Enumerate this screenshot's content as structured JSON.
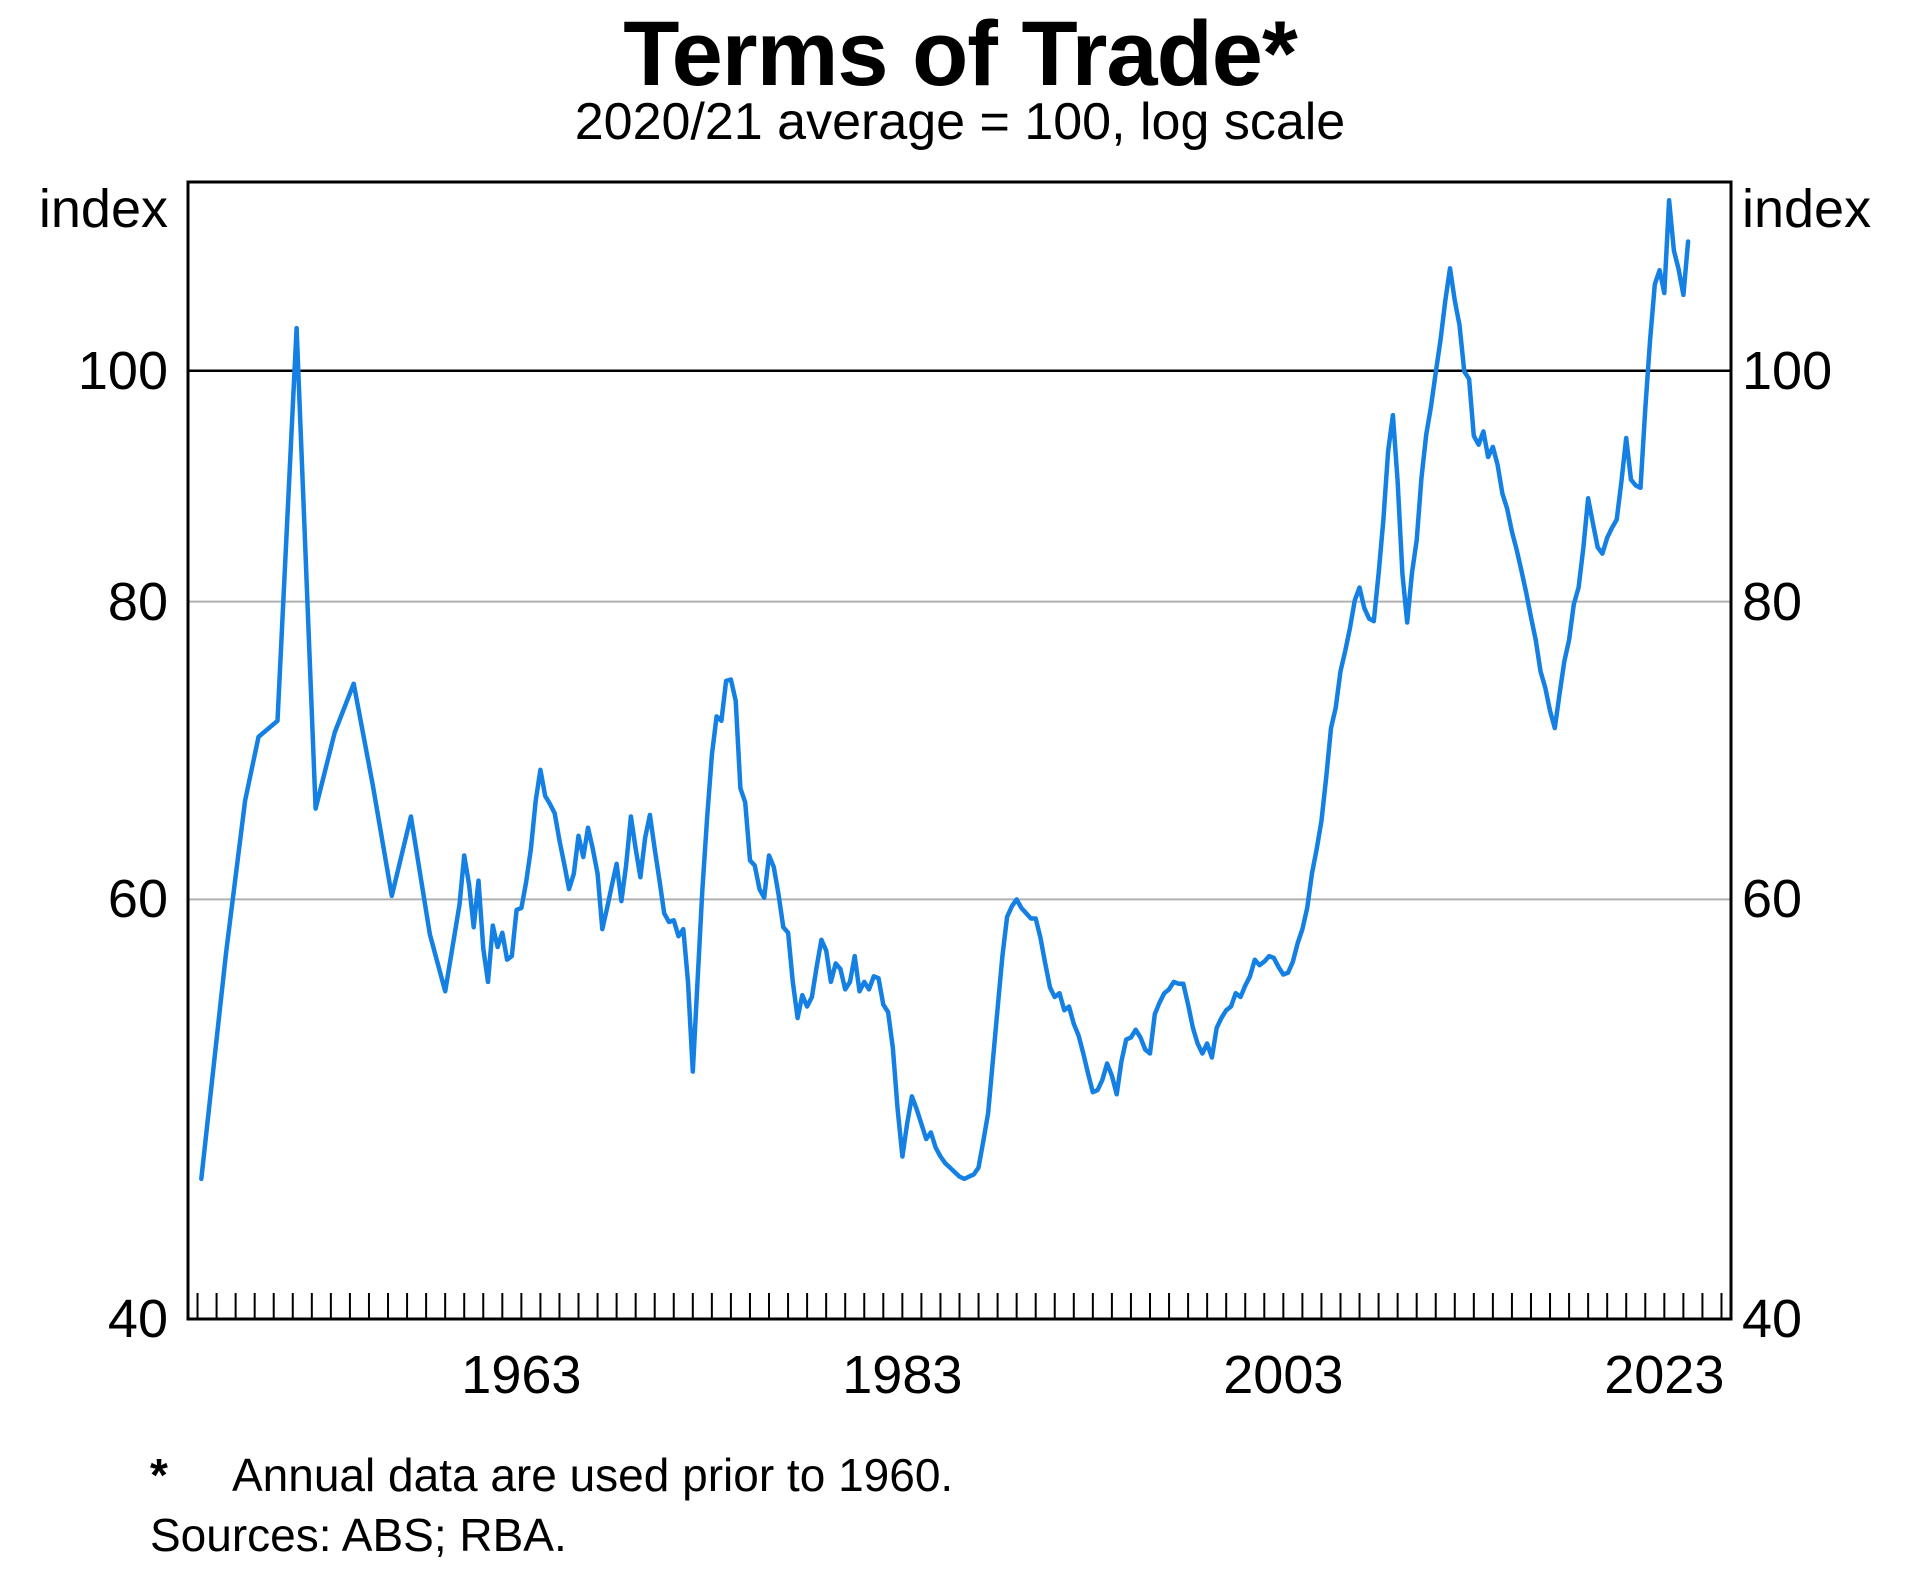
{
  "title": "Terms of Trade*",
  "subtitle": "2020/21 average = 100, log scale",
  "axis_unit": "index",
  "footnote_marker": "*",
  "footnote": "Annual data are used prior to 1960.",
  "sources": "Sources: ABS; RBA.",
  "colors": {
    "line": "#1580E4",
    "grid": "#b0b0b0",
    "axis": "#000000",
    "reference_line": "#000000"
  },
  "chart_data": {
    "type": "line",
    "title": "Terms of Trade*",
    "subtitle": "2020/21 average = 100, log scale",
    "ylabel": "index",
    "y_scale": "log",
    "ylim": [
      40,
      120
    ],
    "yticks": [
      40,
      60,
      80,
      100
    ],
    "reference_line": 100,
    "xlim": [
      1945.5,
      2026.5
    ],
    "xtick_labels": [
      1963,
      1983,
      2003,
      2023
    ],
    "x_minor_tick_step_years": 1,
    "grid": "horizontal",
    "legend_position": "none",
    "series": [
      {
        "name": "Terms of trade",
        "points": [
          [
            1946.2,
            45.8
          ],
          [
            1947.5,
            57.0
          ],
          [
            1948.5,
            66.0
          ],
          [
            1949.2,
            70.2
          ],
          [
            1950.2,
            71.3
          ],
          [
            1951.2,
            104.2
          ],
          [
            1952.2,
            65.5
          ],
          [
            1953.2,
            70.5
          ],
          [
            1954.2,
            73.9
          ],
          [
            1955.2,
            67.0
          ],
          [
            1956.2,
            60.2
          ],
          [
            1957.2,
            65.0
          ],
          [
            1958.2,
            58.0
          ],
          [
            1959.0,
            54.9
          ],
          [
            1959.75,
            59.7
          ],
          [
            1960.0,
            62.6
          ],
          [
            1960.25,
            60.9
          ],
          [
            1960.5,
            58.4
          ],
          [
            1960.75,
            61.1
          ],
          [
            1961.0,
            57.2
          ],
          [
            1961.25,
            55.4
          ],
          [
            1961.5,
            58.5
          ],
          [
            1961.75,
            57.3
          ],
          [
            1962.0,
            58.1
          ],
          [
            1962.25,
            56.6
          ],
          [
            1962.5,
            56.8
          ],
          [
            1962.75,
            59.4
          ],
          [
            1963.0,
            59.5
          ],
          [
            1963.25,
            61.0
          ],
          [
            1963.5,
            63.0
          ],
          [
            1963.75,
            66.0
          ],
          [
            1964.0,
            68.0
          ],
          [
            1964.25,
            66.3
          ],
          [
            1964.5,
            65.8
          ],
          [
            1964.75,
            65.2
          ],
          [
            1965.0,
            63.5
          ],
          [
            1965.25,
            62.1
          ],
          [
            1965.5,
            60.6
          ],
          [
            1965.75,
            61.5
          ],
          [
            1966.0,
            63.8
          ],
          [
            1966.25,
            62.5
          ],
          [
            1966.5,
            64.3
          ],
          [
            1966.75,
            63.0
          ],
          [
            1967.0,
            61.5
          ],
          [
            1967.25,
            58.3
          ],
          [
            1967.5,
            59.5
          ],
          [
            1967.75,
            60.8
          ],
          [
            1968.0,
            62.1
          ],
          [
            1968.25,
            59.9
          ],
          [
            1968.5,
            62.0
          ],
          [
            1968.75,
            65.0
          ],
          [
            1969.0,
            63.0
          ],
          [
            1969.25,
            61.3
          ],
          [
            1969.5,
            63.7
          ],
          [
            1969.75,
            65.1
          ],
          [
            1970.0,
            63.0
          ],
          [
            1970.25,
            61.1
          ],
          [
            1970.5,
            59.2
          ],
          [
            1970.75,
            58.7
          ],
          [
            1971.0,
            58.8
          ],
          [
            1971.25,
            57.9
          ],
          [
            1971.5,
            58.3
          ],
          [
            1971.75,
            55.4
          ],
          [
            1972.0,
            50.8
          ],
          [
            1972.25,
            55.5
          ],
          [
            1972.5,
            60.5
          ],
          [
            1972.75,
            64.9
          ],
          [
            1973.0,
            69.0
          ],
          [
            1973.25,
            71.6
          ],
          [
            1973.5,
            71.3
          ],
          [
            1973.75,
            74.1
          ],
          [
            1974.0,
            74.2
          ],
          [
            1974.25,
            72.7
          ],
          [
            1974.5,
            66.8
          ],
          [
            1974.75,
            65.9
          ],
          [
            1975.0,
            62.3
          ],
          [
            1975.25,
            62.0
          ],
          [
            1975.5,
            60.6
          ],
          [
            1975.75,
            60.1
          ],
          [
            1976.0,
            62.6
          ],
          [
            1976.25,
            61.9
          ],
          [
            1976.5,
            60.3
          ],
          [
            1976.75,
            58.4
          ],
          [
            1977.0,
            58.1
          ],
          [
            1977.25,
            55.4
          ],
          [
            1977.5,
            53.5
          ],
          [
            1977.75,
            54.7
          ],
          [
            1978.0,
            54.1
          ],
          [
            1978.25,
            54.6
          ],
          [
            1978.5,
            56.2
          ],
          [
            1978.75,
            57.7
          ],
          [
            1979.0,
            57.1
          ],
          [
            1979.25,
            55.4
          ],
          [
            1979.5,
            56.4
          ],
          [
            1979.75,
            56.1
          ],
          [
            1980.0,
            55.0
          ],
          [
            1980.25,
            55.4
          ],
          [
            1980.5,
            56.8
          ],
          [
            1980.75,
            54.9
          ],
          [
            1981.0,
            55.4
          ],
          [
            1981.25,
            55.0
          ],
          [
            1981.5,
            55.7
          ],
          [
            1981.75,
            55.6
          ],
          [
            1982.0,
            54.2
          ],
          [
            1982.25,
            53.8
          ],
          [
            1982.5,
            52.0
          ],
          [
            1982.75,
            49.0
          ],
          [
            1983.0,
            46.8
          ],
          [
            1983.25,
            48.3
          ],
          [
            1983.5,
            49.6
          ],
          [
            1983.75,
            49.0
          ],
          [
            1984.0,
            48.3
          ],
          [
            1984.25,
            47.6
          ],
          [
            1984.5,
            47.9
          ],
          [
            1984.75,
            47.2
          ],
          [
            1985.0,
            46.8
          ],
          [
            1985.25,
            46.5
          ],
          [
            1985.5,
            46.3
          ],
          [
            1985.75,
            46.1
          ],
          [
            1986.0,
            45.9
          ],
          [
            1986.25,
            45.8
          ],
          [
            1986.5,
            45.9
          ],
          [
            1986.75,
            46.0
          ],
          [
            1987.0,
            46.3
          ],
          [
            1987.25,
            47.5
          ],
          [
            1987.5,
            48.8
          ],
          [
            1987.75,
            51.3
          ],
          [
            1988.0,
            54.0
          ],
          [
            1988.25,
            56.8
          ],
          [
            1988.5,
            59.0
          ],
          [
            1988.75,
            59.6
          ],
          [
            1989.0,
            60.0
          ],
          [
            1989.25,
            59.5
          ],
          [
            1989.5,
            59.2
          ],
          [
            1989.75,
            58.9
          ],
          [
            1990.0,
            58.9
          ],
          [
            1990.25,
            57.8
          ],
          [
            1990.5,
            56.4
          ],
          [
            1990.75,
            55.1
          ],
          [
            1991.0,
            54.6
          ],
          [
            1991.25,
            54.8
          ],
          [
            1991.5,
            53.9
          ],
          [
            1991.75,
            54.1
          ],
          [
            1992.0,
            53.2
          ],
          [
            1992.25,
            52.6
          ],
          [
            1992.5,
            51.7
          ],
          [
            1992.75,
            50.7
          ],
          [
            1993.0,
            49.8
          ],
          [
            1993.25,
            49.9
          ],
          [
            1993.5,
            50.4
          ],
          [
            1993.75,
            51.2
          ],
          [
            1994.0,
            50.6
          ],
          [
            1994.25,
            49.7
          ],
          [
            1994.5,
            51.3
          ],
          [
            1994.75,
            52.4
          ],
          [
            1995.0,
            52.5
          ],
          [
            1995.25,
            52.9
          ],
          [
            1995.5,
            52.5
          ],
          [
            1995.75,
            51.9
          ],
          [
            1996.0,
            51.7
          ],
          [
            1996.25,
            53.7
          ],
          [
            1996.5,
            54.3
          ],
          [
            1996.75,
            54.8
          ],
          [
            1997.0,
            55.0
          ],
          [
            1997.25,
            55.4
          ],
          [
            1997.5,
            55.3
          ],
          [
            1997.75,
            55.3
          ],
          [
            1998.0,
            54.2
          ],
          [
            1998.25,
            53.0
          ],
          [
            1998.5,
            52.2
          ],
          [
            1998.75,
            51.7
          ],
          [
            1999.0,
            52.2
          ],
          [
            1999.25,
            51.5
          ],
          [
            1999.5,
            53.0
          ],
          [
            1999.75,
            53.5
          ],
          [
            2000.0,
            53.9
          ],
          [
            2000.25,
            54.1
          ],
          [
            2000.5,
            54.8
          ],
          [
            2000.75,
            54.6
          ],
          [
            2001.0,
            55.2
          ],
          [
            2001.25,
            55.7
          ],
          [
            2001.5,
            56.6
          ],
          [
            2001.75,
            56.3
          ],
          [
            2002.0,
            56.5
          ],
          [
            2002.25,
            56.8
          ],
          [
            2002.5,
            56.7
          ],
          [
            2002.75,
            56.2
          ],
          [
            2003.0,
            55.8
          ],
          [
            2003.25,
            55.9
          ],
          [
            2003.5,
            56.5
          ],
          [
            2003.75,
            57.5
          ],
          [
            2004.0,
            58.3
          ],
          [
            2004.25,
            59.5
          ],
          [
            2004.5,
            61.5
          ],
          [
            2004.75,
            63.0
          ],
          [
            2005.0,
            64.7
          ],
          [
            2005.25,
            67.5
          ],
          [
            2005.5,
            70.8
          ],
          [
            2005.75,
            72.2
          ],
          [
            2006.0,
            74.8
          ],
          [
            2006.25,
            76.3
          ],
          [
            2006.5,
            78.0
          ],
          [
            2006.75,
            80.1
          ],
          [
            2007.0,
            81.1
          ],
          [
            2007.25,
            79.5
          ],
          [
            2007.5,
            78.7
          ],
          [
            2007.75,
            78.5
          ],
          [
            2008.0,
            82.2
          ],
          [
            2008.25,
            86.5
          ],
          [
            2008.5,
            92.5
          ],
          [
            2008.75,
            95.8
          ],
          [
            2009.0,
            89.9
          ],
          [
            2009.25,
            82.2
          ],
          [
            2009.5,
            78.4
          ],
          [
            2009.75,
            82.2
          ],
          [
            2010.0,
            84.9
          ],
          [
            2010.25,
            90.1
          ],
          [
            2010.5,
            94.0
          ],
          [
            2010.75,
            96.6
          ],
          [
            2011.0,
            99.8
          ],
          [
            2011.25,
            103.0
          ],
          [
            2011.5,
            107.0
          ],
          [
            2011.75,
            110.4
          ],
          [
            2012.0,
            107.0
          ],
          [
            2012.25,
            104.5
          ],
          [
            2012.5,
            99.9
          ],
          [
            2012.75,
            99.2
          ],
          [
            2013.0,
            93.9
          ],
          [
            2013.25,
            93.1
          ],
          [
            2013.5,
            94.3
          ],
          [
            2013.75,
            92.0
          ],
          [
            2014.0,
            92.9
          ],
          [
            2014.25,
            91.3
          ],
          [
            2014.5,
            88.8
          ],
          [
            2014.75,
            87.5
          ],
          [
            2015.0,
            85.6
          ],
          [
            2015.25,
            84.1
          ],
          [
            2015.5,
            82.4
          ],
          [
            2015.75,
            80.7
          ],
          [
            2016.0,
            78.8
          ],
          [
            2016.25,
            77.1
          ],
          [
            2016.5,
            74.8
          ],
          [
            2016.75,
            73.6
          ],
          [
            2017.0,
            72.0
          ],
          [
            2017.25,
            70.8
          ],
          [
            2017.5,
            73.2
          ],
          [
            2017.75,
            75.5
          ],
          [
            2018.0,
            77.1
          ],
          [
            2018.25,
            79.8
          ],
          [
            2018.5,
            81.1
          ],
          [
            2018.75,
            84.3
          ],
          [
            2019.0,
            88.4
          ],
          [
            2019.25,
            86.3
          ],
          [
            2019.5,
            84.3
          ],
          [
            2019.75,
            83.8
          ],
          [
            2020.0,
            85.1
          ],
          [
            2020.25,
            85.9
          ],
          [
            2020.5,
            86.6
          ],
          [
            2020.75,
            89.9
          ],
          [
            2021.0,
            93.7
          ],
          [
            2021.25,
            90.0
          ],
          [
            2021.5,
            89.5
          ],
          [
            2021.75,
            89.3
          ],
          [
            2022.0,
            96.4
          ],
          [
            2022.25,
            102.9
          ],
          [
            2022.5,
            108.7
          ],
          [
            2022.75,
            110.2
          ],
          [
            2023.0,
            107.8
          ],
          [
            2023.25,
            117.9
          ],
          [
            2023.5,
            112.3
          ],
          [
            2023.75,
            110.3
          ],
          [
            2024.0,
            107.6
          ],
          [
            2024.25,
            113.3
          ]
        ]
      }
    ]
  }
}
